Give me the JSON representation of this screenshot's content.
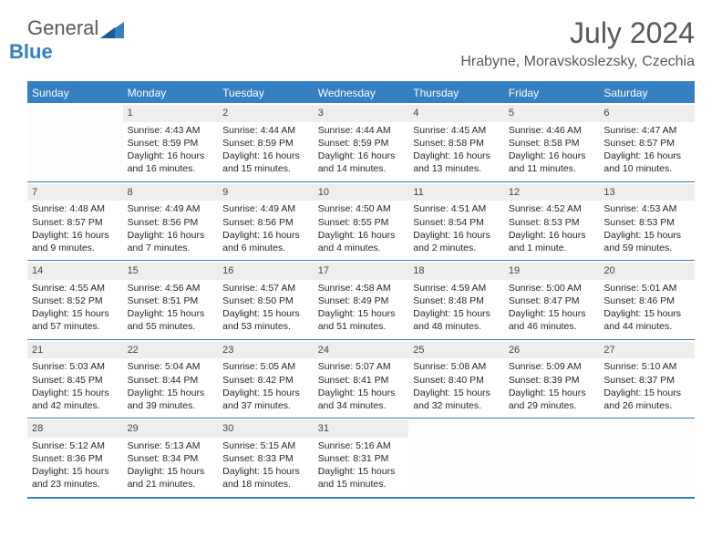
{
  "brand": {
    "part1": "General",
    "part2": "Blue"
  },
  "title": {
    "month": "July 2024",
    "location": "Hrabyne, Moravskoslezsky, Czechia"
  },
  "colors": {
    "accent": "#3480c2",
    "daynum_bg": "#eeeeee",
    "text": "#262626",
    "muted": "#595959",
    "background": "#ffffff"
  },
  "calendar": {
    "headers": [
      "Sunday",
      "Monday",
      "Tuesday",
      "Wednesday",
      "Thursday",
      "Friday",
      "Saturday"
    ],
    "weeks": [
      [
        null,
        {
          "d": "1",
          "sr": "4:43 AM",
          "ss": "8:59 PM",
          "dl": "16 hours and 16 minutes."
        },
        {
          "d": "2",
          "sr": "4:44 AM",
          "ss": "8:59 PM",
          "dl": "16 hours and 15 minutes."
        },
        {
          "d": "3",
          "sr": "4:44 AM",
          "ss": "8:59 PM",
          "dl": "16 hours and 14 minutes."
        },
        {
          "d": "4",
          "sr": "4:45 AM",
          "ss": "8:58 PM",
          "dl": "16 hours and 13 minutes."
        },
        {
          "d": "5",
          "sr": "4:46 AM",
          "ss": "8:58 PM",
          "dl": "16 hours and 11 minutes."
        },
        {
          "d": "6",
          "sr": "4:47 AM",
          "ss": "8:57 PM",
          "dl": "16 hours and 10 minutes."
        }
      ],
      [
        {
          "d": "7",
          "sr": "4:48 AM",
          "ss": "8:57 PM",
          "dl": "16 hours and 9 minutes."
        },
        {
          "d": "8",
          "sr": "4:49 AM",
          "ss": "8:56 PM",
          "dl": "16 hours and 7 minutes."
        },
        {
          "d": "9",
          "sr": "4:49 AM",
          "ss": "8:56 PM",
          "dl": "16 hours and 6 minutes."
        },
        {
          "d": "10",
          "sr": "4:50 AM",
          "ss": "8:55 PM",
          "dl": "16 hours and 4 minutes."
        },
        {
          "d": "11",
          "sr": "4:51 AM",
          "ss": "8:54 PM",
          "dl": "16 hours and 2 minutes."
        },
        {
          "d": "12",
          "sr": "4:52 AM",
          "ss": "8:53 PM",
          "dl": "16 hours and 1 minute."
        },
        {
          "d": "13",
          "sr": "4:53 AM",
          "ss": "8:53 PM",
          "dl": "15 hours and 59 minutes."
        }
      ],
      [
        {
          "d": "14",
          "sr": "4:55 AM",
          "ss": "8:52 PM",
          "dl": "15 hours and 57 minutes."
        },
        {
          "d": "15",
          "sr": "4:56 AM",
          "ss": "8:51 PM",
          "dl": "15 hours and 55 minutes."
        },
        {
          "d": "16",
          "sr": "4:57 AM",
          "ss": "8:50 PM",
          "dl": "15 hours and 53 minutes."
        },
        {
          "d": "17",
          "sr": "4:58 AM",
          "ss": "8:49 PM",
          "dl": "15 hours and 51 minutes."
        },
        {
          "d": "18",
          "sr": "4:59 AM",
          "ss": "8:48 PM",
          "dl": "15 hours and 48 minutes."
        },
        {
          "d": "19",
          "sr": "5:00 AM",
          "ss": "8:47 PM",
          "dl": "15 hours and 46 minutes."
        },
        {
          "d": "20",
          "sr": "5:01 AM",
          "ss": "8:46 PM",
          "dl": "15 hours and 44 minutes."
        }
      ],
      [
        {
          "d": "21",
          "sr": "5:03 AM",
          "ss": "8:45 PM",
          "dl": "15 hours and 42 minutes."
        },
        {
          "d": "22",
          "sr": "5:04 AM",
          "ss": "8:44 PM",
          "dl": "15 hours and 39 minutes."
        },
        {
          "d": "23",
          "sr": "5:05 AM",
          "ss": "8:42 PM",
          "dl": "15 hours and 37 minutes."
        },
        {
          "d": "24",
          "sr": "5:07 AM",
          "ss": "8:41 PM",
          "dl": "15 hours and 34 minutes."
        },
        {
          "d": "25",
          "sr": "5:08 AM",
          "ss": "8:40 PM",
          "dl": "15 hours and 32 minutes."
        },
        {
          "d": "26",
          "sr": "5:09 AM",
          "ss": "8:39 PM",
          "dl": "15 hours and 29 minutes."
        },
        {
          "d": "27",
          "sr": "5:10 AM",
          "ss": "8:37 PM",
          "dl": "15 hours and 26 minutes."
        }
      ],
      [
        {
          "d": "28",
          "sr": "5:12 AM",
          "ss": "8:36 PM",
          "dl": "15 hours and 23 minutes."
        },
        {
          "d": "29",
          "sr": "5:13 AM",
          "ss": "8:34 PM",
          "dl": "15 hours and 21 minutes."
        },
        {
          "d": "30",
          "sr": "5:15 AM",
          "ss": "8:33 PM",
          "dl": "15 hours and 18 minutes."
        },
        {
          "d": "31",
          "sr": "5:16 AM",
          "ss": "8:31 PM",
          "dl": "15 hours and 15 minutes."
        },
        null,
        null,
        null
      ]
    ]
  },
  "labels": {
    "sunrise": "Sunrise:",
    "sunset": "Sunset:",
    "daylight": "Daylight:"
  }
}
